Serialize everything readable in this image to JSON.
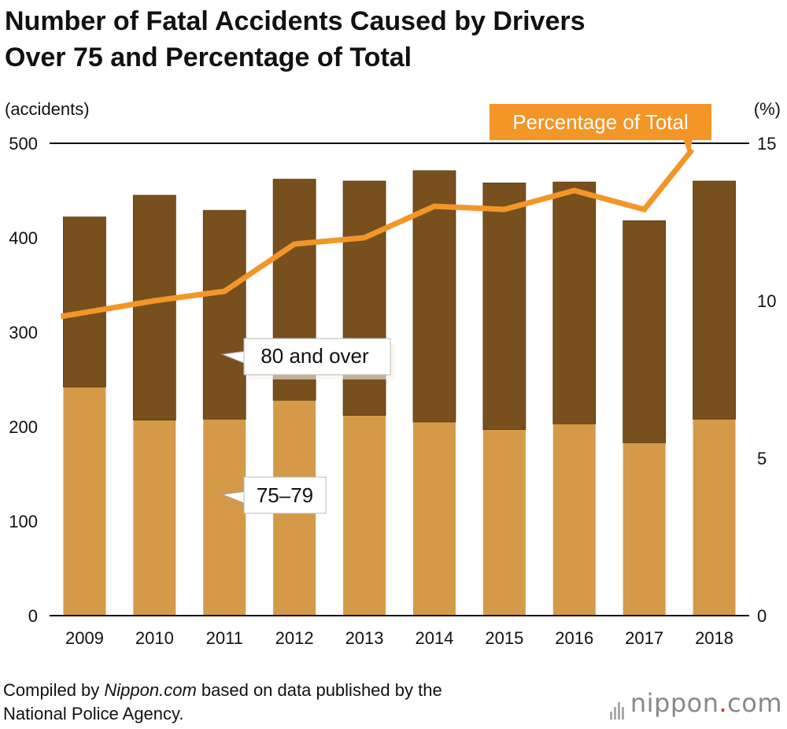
{
  "title_line1": "Number of Fatal Accidents Caused by Drivers",
  "title_line2": "Over 75 and Percentage of Total",
  "left_unit": "(accidents)",
  "right_unit": "(%)",
  "source_prefix": "Compiled by ",
  "source_site": "Nippon.com",
  "source_suffix": " based on data published by the",
  "source_line2": "National Police Agency.",
  "logo_text": "nippon",
  "logo_dot": ".",
  "logo_tld": "com",
  "colors": {
    "over80": "#77501e",
    "age75_79": "#d49a48",
    "percentage": "#f39627",
    "axis": "#111111"
  },
  "chart_data": {
    "type": "bar",
    "stacked": true,
    "categories": [
      "2009",
      "2010",
      "2011",
      "2012",
      "2013",
      "2014",
      "2015",
      "2016",
      "2017",
      "2018"
    ],
    "series": [
      {
        "name": "75–79",
        "values": [
          242,
          207,
          208,
          228,
          212,
          205,
          197,
          203,
          183,
          208
        ]
      },
      {
        "name": "80 and over",
        "values": [
          180,
          238,
          221,
          234,
          248,
          266,
          261,
          256,
          235,
          252
        ]
      }
    ],
    "line_series": {
      "name": "Percentage of Total",
      "axis": "right",
      "values": [
        9.5,
        10.0,
        10.3,
        11.8,
        12.0,
        13.0,
        12.9,
        13.5,
        12.9,
        14.8
      ]
    },
    "ylim_left": [
      0,
      500
    ],
    "yticks_left": [
      "0",
      "100",
      "200",
      "300",
      "400",
      "500"
    ],
    "ylim_right": [
      0,
      15
    ],
    "yticks_right": [
      "0",
      "5",
      "10",
      "15"
    ],
    "grid": false
  }
}
